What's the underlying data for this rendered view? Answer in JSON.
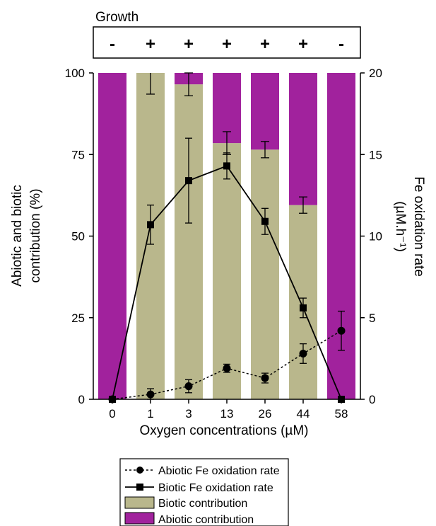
{
  "growth": {
    "title": "Growth",
    "signs": [
      "-",
      "+",
      "+",
      "+",
      "+",
      "+",
      "-"
    ]
  },
  "chart_data": {
    "type": "bar",
    "categories": [
      "0",
      "1",
      "3",
      "13",
      "26",
      "44",
      "58"
    ],
    "xlabel": "Oxygen concentrations (µM)",
    "ylabel_left": [
      "Abiotic and biotic",
      "contribution (%)"
    ],
    "ylabel_right": [
      "Fe oxidation rate",
      "(µM.h⁻¹)"
    ],
    "ylim_left": [
      0,
      100
    ],
    "ylim_right": [
      0,
      20
    ],
    "yticks_left": [
      0,
      25,
      50,
      75,
      100
    ],
    "yticks_right": [
      0,
      5,
      10,
      15,
      20
    ],
    "grid": false,
    "legend_placement": "bottom",
    "series": [
      {
        "name": "Biotic contribution",
        "kind": "stacked-bar",
        "axis": "left",
        "color": "#b9b78c",
        "values": [
          0,
          100,
          96.5,
          78.5,
          76.5,
          59.5,
          0
        ],
        "error": [
          0,
          6.5,
          3.5,
          3.5,
          2.5,
          2.5,
          0
        ]
      },
      {
        "name": "Abiotic contribution",
        "kind": "stacked-bar",
        "axis": "left",
        "color": "#a1229d",
        "values": [
          100,
          0,
          3.5,
          21.5,
          23.5,
          40.5,
          100
        ]
      },
      {
        "name": "Abiotic Fe oxidation rate",
        "kind": "line",
        "axis": "right",
        "style": "dotted",
        "marker": "circle",
        "values": [
          0,
          0.3,
          0.8,
          1.9,
          1.3,
          2.8,
          4.2
        ],
        "error": [
          0,
          0.35,
          0.4,
          0.25,
          0.3,
          0.6,
          1.2
        ]
      },
      {
        "name": "Biotic Fe oxidation rate",
        "kind": "line",
        "axis": "right",
        "style": "solid",
        "marker": "square",
        "values": [
          0,
          10.7,
          13.4,
          14.3,
          10.9,
          5.6,
          0
        ],
        "error": [
          0,
          1.2,
          2.6,
          0.8,
          0.8,
          0.6,
          0
        ]
      }
    ]
  },
  "legend": [
    {
      "label": "Abiotic Fe oxidation rate",
      "symbol": "dotted-circle"
    },
    {
      "label": "Biotic Fe oxidation rate",
      "symbol": "solid-square"
    },
    {
      "label": "Biotic contribution",
      "symbol": "swatch",
      "color": "#b9b78c"
    },
    {
      "label": "Abiotic contribution",
      "symbol": "swatch",
      "color": "#a1229d"
    }
  ]
}
